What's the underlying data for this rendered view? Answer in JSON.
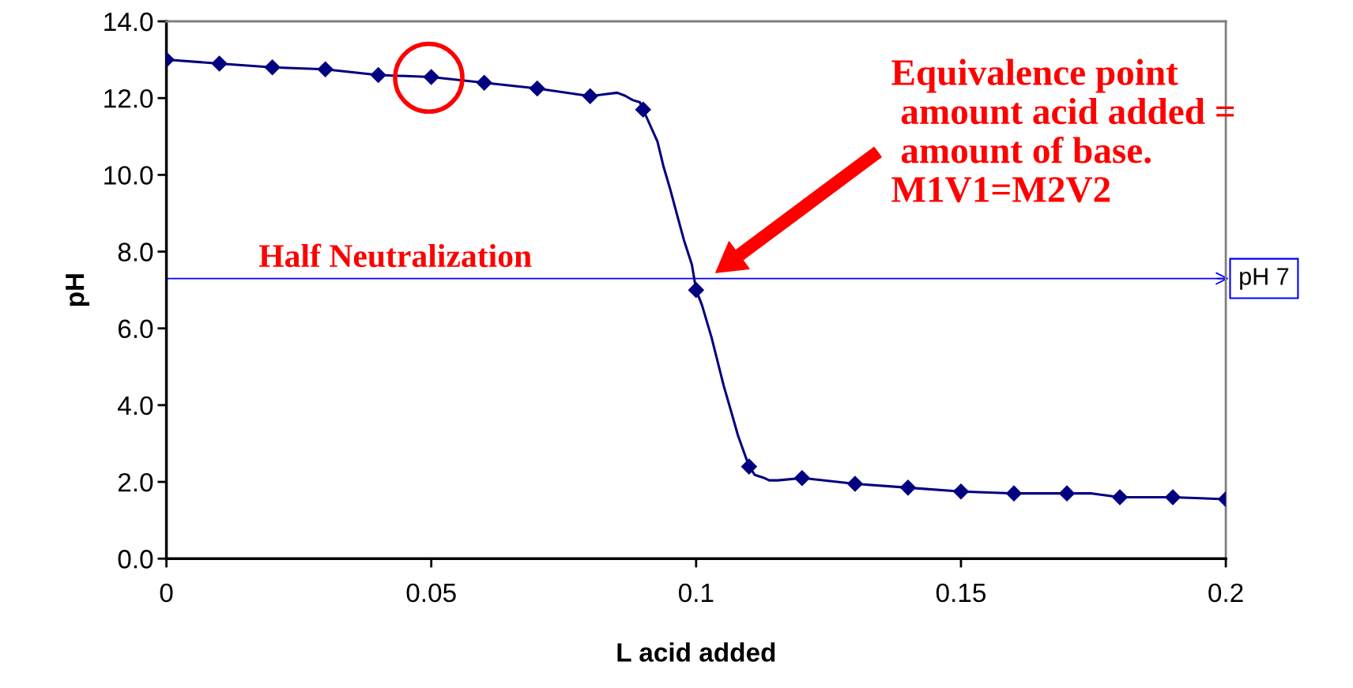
{
  "chart_data": {
    "type": "line",
    "xlabel": "L acid added",
    "ylabel": "pH",
    "xlim": [
      0,
      0.2
    ],
    "xticks": [
      0,
      0.05,
      0.1,
      0.15,
      0.2
    ],
    "ylim": [
      0,
      14
    ],
    "yticks": [
      {
        "value": 0,
        "label": "0.0"
      },
      {
        "value": 2,
        "label": "2.0"
      },
      {
        "value": 4,
        "label": "4.0"
      },
      {
        "value": 6,
        "label": "6.0"
      },
      {
        "value": 8,
        "label": "8.0"
      },
      {
        "value": 10,
        "label": "10.0"
      },
      {
        "value": 12,
        "label": "12.0"
      },
      {
        "value": 14,
        "label": "14.0"
      }
    ],
    "grid": false,
    "legend": false,
    "series": [
      {
        "color": "#000080",
        "marker": "none",
        "line_style": "solid",
        "x": [
          0,
          0.01,
          0.02,
          0.03,
          0.04,
          0.05,
          0.06,
          0.07,
          0.08,
          0.0851,
          0.0866,
          0.088,
          0.0894,
          0.09,
          0.0927,
          0.0938,
          0.0951,
          0.0964,
          0.0977,
          0.0992,
          0.1,
          0.1011,
          0.1029,
          0.1052,
          0.1066,
          0.1079,
          0.11,
          0.1111,
          0.1127,
          0.1138,
          0.1154,
          0.12,
          0.13,
          0.14,
          0.15,
          0.16,
          0.17,
          0.1747,
          0.18,
          0.19,
          0.2
        ],
        "values": [
          13.0,
          12.9,
          12.8,
          12.75,
          12.6,
          12.55,
          12.4,
          12.25,
          12.05,
          12.14,
          12.06,
          11.95,
          11.89,
          11.7,
          10.87,
          10.24,
          9.63,
          8.96,
          8.3,
          7.66,
          7.0,
          6.61,
          5.77,
          4.51,
          3.84,
          3.21,
          2.4,
          2.18,
          2.11,
          2.04,
          2.04,
          2.1,
          1.95,
          1.85,
          1.75,
          1.7,
          1.7,
          1.7,
          1.6,
          1.6,
          1.55
        ]
      },
      {
        "type": "scatter",
        "color": "#000080",
        "marker": "diamond",
        "x": [
          0,
          0.01,
          0.02,
          0.03,
          0.04,
          0.05,
          0.06,
          0.07,
          0.08,
          0.09,
          0.1,
          0.11,
          0.12,
          0.13,
          0.14,
          0.15,
          0.16,
          0.17,
          0.18,
          0.19,
          0.2
        ],
        "values": [
          13.0,
          12.9,
          12.8,
          12.75,
          12.6,
          12.55,
          12.4,
          12.25,
          12.05,
          11.7,
          7.0,
          2.4,
          2.1,
          1.95,
          1.85,
          1.75,
          1.7,
          1.7,
          1.6,
          1.6,
          1.55
        ]
      }
    ],
    "ref_lines": [
      {
        "axis": "y",
        "value": 7.3,
        "label": "pH 7",
        "color": "#0000ff",
        "line_style": "solid"
      }
    ],
    "annotations": [
      "Half Neutralization",
      "Equivalence point\n amount acid added =\n amount of base.\nM1V1=M2V2"
    ]
  }
}
